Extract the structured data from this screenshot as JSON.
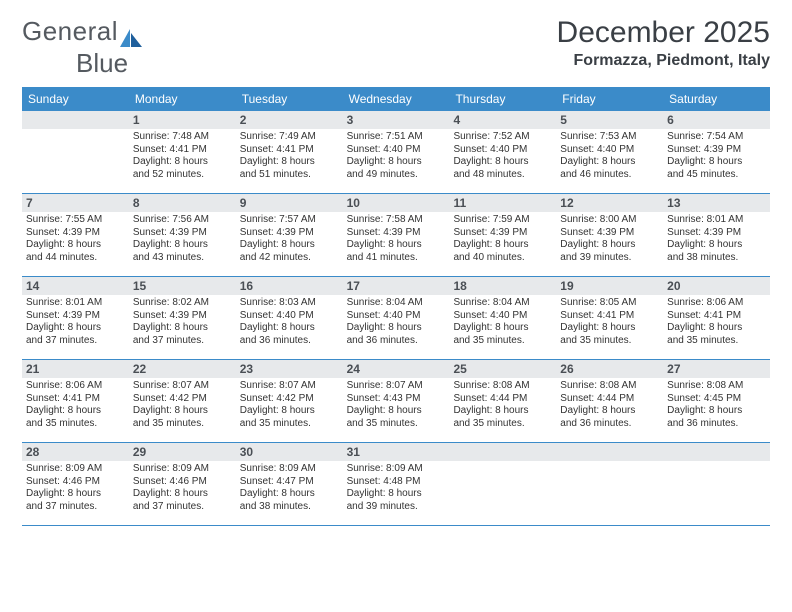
{
  "logo": {
    "text1": "General",
    "text2": "Blue"
  },
  "title": "December 2025",
  "location": "Formazza, Piedmont, Italy",
  "colors": {
    "header_blue": "#3b8bc9",
    "daybar_gray": "#e7e9eb",
    "text_dark": "#333333",
    "title_gray": "#3a3f45"
  },
  "dows": [
    "Sunday",
    "Monday",
    "Tuesday",
    "Wednesday",
    "Thursday",
    "Friday",
    "Saturday"
  ],
  "weeks": [
    [
      null,
      {
        "n": "1",
        "sr": "7:48 AM",
        "ss": "4:41 PM",
        "d1": "Daylight: 8 hours",
        "d2": "and 52 minutes."
      },
      {
        "n": "2",
        "sr": "7:49 AM",
        "ss": "4:41 PM",
        "d1": "Daylight: 8 hours",
        "d2": "and 51 minutes."
      },
      {
        "n": "3",
        "sr": "7:51 AM",
        "ss": "4:40 PM",
        "d1": "Daylight: 8 hours",
        "d2": "and 49 minutes."
      },
      {
        "n": "4",
        "sr": "7:52 AM",
        "ss": "4:40 PM",
        "d1": "Daylight: 8 hours",
        "d2": "and 48 minutes."
      },
      {
        "n": "5",
        "sr": "7:53 AM",
        "ss": "4:40 PM",
        "d1": "Daylight: 8 hours",
        "d2": "and 46 minutes."
      },
      {
        "n": "6",
        "sr": "7:54 AM",
        "ss": "4:39 PM",
        "d1": "Daylight: 8 hours",
        "d2": "and 45 minutes."
      }
    ],
    [
      {
        "n": "7",
        "sr": "7:55 AM",
        "ss": "4:39 PM",
        "d1": "Daylight: 8 hours",
        "d2": "and 44 minutes."
      },
      {
        "n": "8",
        "sr": "7:56 AM",
        "ss": "4:39 PM",
        "d1": "Daylight: 8 hours",
        "d2": "and 43 minutes."
      },
      {
        "n": "9",
        "sr": "7:57 AM",
        "ss": "4:39 PM",
        "d1": "Daylight: 8 hours",
        "d2": "and 42 minutes."
      },
      {
        "n": "10",
        "sr": "7:58 AM",
        "ss": "4:39 PM",
        "d1": "Daylight: 8 hours",
        "d2": "and 41 minutes."
      },
      {
        "n": "11",
        "sr": "7:59 AM",
        "ss": "4:39 PM",
        "d1": "Daylight: 8 hours",
        "d2": "and 40 minutes."
      },
      {
        "n": "12",
        "sr": "8:00 AM",
        "ss": "4:39 PM",
        "d1": "Daylight: 8 hours",
        "d2": "and 39 minutes."
      },
      {
        "n": "13",
        "sr": "8:01 AM",
        "ss": "4:39 PM",
        "d1": "Daylight: 8 hours",
        "d2": "and 38 minutes."
      }
    ],
    [
      {
        "n": "14",
        "sr": "8:01 AM",
        "ss": "4:39 PM",
        "d1": "Daylight: 8 hours",
        "d2": "and 37 minutes."
      },
      {
        "n": "15",
        "sr": "8:02 AM",
        "ss": "4:39 PM",
        "d1": "Daylight: 8 hours",
        "d2": "and 37 minutes."
      },
      {
        "n": "16",
        "sr": "8:03 AM",
        "ss": "4:40 PM",
        "d1": "Daylight: 8 hours",
        "d2": "and 36 minutes."
      },
      {
        "n": "17",
        "sr": "8:04 AM",
        "ss": "4:40 PM",
        "d1": "Daylight: 8 hours",
        "d2": "and 36 minutes."
      },
      {
        "n": "18",
        "sr": "8:04 AM",
        "ss": "4:40 PM",
        "d1": "Daylight: 8 hours",
        "d2": "and 35 minutes."
      },
      {
        "n": "19",
        "sr": "8:05 AM",
        "ss": "4:41 PM",
        "d1": "Daylight: 8 hours",
        "d2": "and 35 minutes."
      },
      {
        "n": "20",
        "sr": "8:06 AM",
        "ss": "4:41 PM",
        "d1": "Daylight: 8 hours",
        "d2": "and 35 minutes."
      }
    ],
    [
      {
        "n": "21",
        "sr": "8:06 AM",
        "ss": "4:41 PM",
        "d1": "Daylight: 8 hours",
        "d2": "and 35 minutes."
      },
      {
        "n": "22",
        "sr": "8:07 AM",
        "ss": "4:42 PM",
        "d1": "Daylight: 8 hours",
        "d2": "and 35 minutes."
      },
      {
        "n": "23",
        "sr": "8:07 AM",
        "ss": "4:42 PM",
        "d1": "Daylight: 8 hours",
        "d2": "and 35 minutes."
      },
      {
        "n": "24",
        "sr": "8:07 AM",
        "ss": "4:43 PM",
        "d1": "Daylight: 8 hours",
        "d2": "and 35 minutes."
      },
      {
        "n": "25",
        "sr": "8:08 AM",
        "ss": "4:44 PM",
        "d1": "Daylight: 8 hours",
        "d2": "and 35 minutes."
      },
      {
        "n": "26",
        "sr": "8:08 AM",
        "ss": "4:44 PM",
        "d1": "Daylight: 8 hours",
        "d2": "and 36 minutes."
      },
      {
        "n": "27",
        "sr": "8:08 AM",
        "ss": "4:45 PM",
        "d1": "Daylight: 8 hours",
        "d2": "and 36 minutes."
      }
    ],
    [
      {
        "n": "28",
        "sr": "8:09 AM",
        "ss": "4:46 PM",
        "d1": "Daylight: 8 hours",
        "d2": "and 37 minutes."
      },
      {
        "n": "29",
        "sr": "8:09 AM",
        "ss": "4:46 PM",
        "d1": "Daylight: 8 hours",
        "d2": "and 37 minutes."
      },
      {
        "n": "30",
        "sr": "8:09 AM",
        "ss": "4:47 PM",
        "d1": "Daylight: 8 hours",
        "d2": "and 38 minutes."
      },
      {
        "n": "31",
        "sr": "8:09 AM",
        "ss": "4:48 PM",
        "d1": "Daylight: 8 hours",
        "d2": "and 39 minutes."
      },
      null,
      null,
      null
    ]
  ]
}
